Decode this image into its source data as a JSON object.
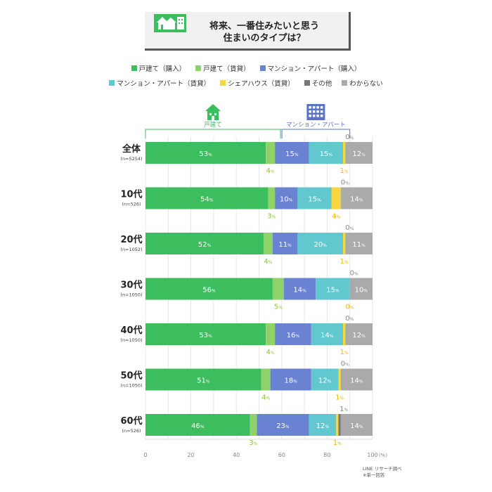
{
  "title": {
    "line1": "将来、一番住みたいと思う",
    "line2": "住まいのタイプは？"
  },
  "colors": {
    "house_buy": "#3cbd5e",
    "house_rent": "#8ed36a",
    "mansion_buy": "#6a82d2",
    "mansion_rent": "#62c8d0",
    "share": "#f6d73d",
    "other": "#777777",
    "unknown": "#aaaaaa",
    "group_house": "#3cbd5e",
    "group_mansion": "#5a73c6"
  },
  "groups": {
    "house": "戸建て",
    "mansion": "マンション・アパート"
  },
  "chart_data": {
    "type": "bar",
    "orientation": "horizontal",
    "stacked": true,
    "unit": "%",
    "xlim": [
      0,
      100
    ],
    "xticks": [
      "0",
      "20",
      "40",
      "60",
      "80",
      "100"
    ],
    "x_unit_label": "(%)",
    "categories": [
      {
        "label": "全体",
        "n": "(n=5254)"
      },
      {
        "label": "10代",
        "n": "(n=526)"
      },
      {
        "label": "20代",
        "n": "(n=1052)"
      },
      {
        "label": "30代",
        "n": "(n=1050)"
      },
      {
        "label": "40代",
        "n": "(n=1050)"
      },
      {
        "label": "50代",
        "n": "(n=1050)"
      },
      {
        "label": "60代",
        "n": "(n=526)"
      }
    ],
    "series": [
      {
        "name": "戸建て（購入）",
        "color": "#3cbd5e",
        "values": [
          53,
          54,
          52,
          56,
          53,
          51,
          46
        ]
      },
      {
        "name": "戸建て（賃貸）",
        "color": "#8ed36a",
        "values": [
          4,
          3,
          4,
          5,
          4,
          4,
          3
        ]
      },
      {
        "name": "マンション・アパート（購入）",
        "color": "#6a82d2",
        "values": [
          15,
          10,
          11,
          14,
          16,
          18,
          23
        ]
      },
      {
        "name": "マンション・アパート（賃貸）",
        "color": "#62c8d0",
        "values": [
          15,
          15,
          20,
          15,
          14,
          12,
          12
        ]
      },
      {
        "name": "シェアハウス（賃貸）",
        "color": "#f6d73d",
        "values": [
          1,
          4,
          1,
          0,
          1,
          1,
          1
        ]
      },
      {
        "name": "その他",
        "color": "#777777",
        "values": [
          0,
          0,
          0,
          0,
          0,
          0,
          1
        ]
      },
      {
        "name": "わからない",
        "color": "#aaaaaa",
        "values": [
          12,
          14,
          11,
          10,
          12,
          14,
          14
        ]
      }
    ]
  },
  "credit": {
    "line1": "LINE リサーチ調べ",
    "line2": "※単一回答"
  }
}
